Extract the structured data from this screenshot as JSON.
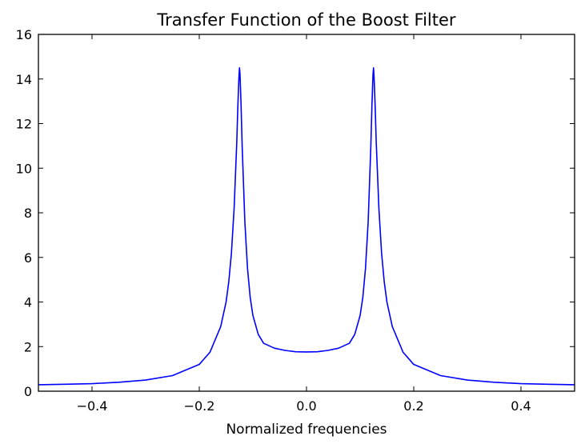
{
  "chart_data": {
    "type": "line",
    "title": "Transfer Function of the Boost Filter",
    "xlabel": "Normalized frequencies",
    "ylabel": "",
    "xlim": [
      -0.5,
      0.5
    ],
    "ylim": [
      0,
      16
    ],
    "xticks": [
      -0.4,
      -0.2,
      0.0,
      0.2,
      0.4
    ],
    "xtick_labels": [
      "−0.4",
      "−0.2",
      "0.0",
      "0.2",
      "0.4"
    ],
    "yticks": [
      0,
      2,
      4,
      6,
      8,
      10,
      12,
      14,
      16
    ],
    "ytick_labels": [
      "0",
      "2",
      "4",
      "6",
      "8",
      "10",
      "12",
      "14",
      "16"
    ],
    "grid": false,
    "legend": "none",
    "series": [
      {
        "color": "#0000ff",
        "x": [
          -0.5,
          -0.45,
          -0.4,
          -0.35,
          -0.3,
          -0.25,
          -0.2,
          -0.18,
          -0.16,
          -0.15,
          -0.145,
          -0.14,
          -0.135,
          -0.13,
          -0.128,
          -0.126,
          -0.125,
          -0.124,
          -0.122,
          -0.12,
          -0.115,
          -0.11,
          -0.105,
          -0.1,
          -0.09,
          -0.08,
          -0.06,
          -0.04,
          -0.02,
          0.0,
          0.02,
          0.04,
          0.06,
          0.08,
          0.09,
          0.1,
          0.105,
          0.11,
          0.115,
          0.12,
          0.122,
          0.124,
          0.125,
          0.126,
          0.128,
          0.13,
          0.135,
          0.14,
          0.145,
          0.15,
          0.16,
          0.18,
          0.2,
          0.25,
          0.3,
          0.35,
          0.4,
          0.45,
          0.5
        ],
        "y": [
          0.29,
          0.31,
          0.34,
          0.4,
          0.5,
          0.7,
          1.2,
          1.75,
          2.9,
          4.0,
          4.9,
          6.2,
          8.2,
          11.2,
          12.8,
          14.1,
          14.5,
          14.2,
          12.8,
          11.0,
          7.6,
          5.5,
          4.2,
          3.4,
          2.55,
          2.15,
          1.93,
          1.83,
          1.77,
          1.76,
          1.77,
          1.83,
          1.93,
          2.15,
          2.55,
          3.4,
          4.2,
          5.5,
          7.6,
          11.0,
          12.8,
          14.2,
          14.5,
          14.1,
          12.8,
          11.2,
          8.2,
          6.2,
          4.9,
          4.0,
          2.9,
          1.75,
          1.2,
          0.7,
          0.5,
          0.4,
          0.34,
          0.31,
          0.29
        ]
      }
    ]
  }
}
